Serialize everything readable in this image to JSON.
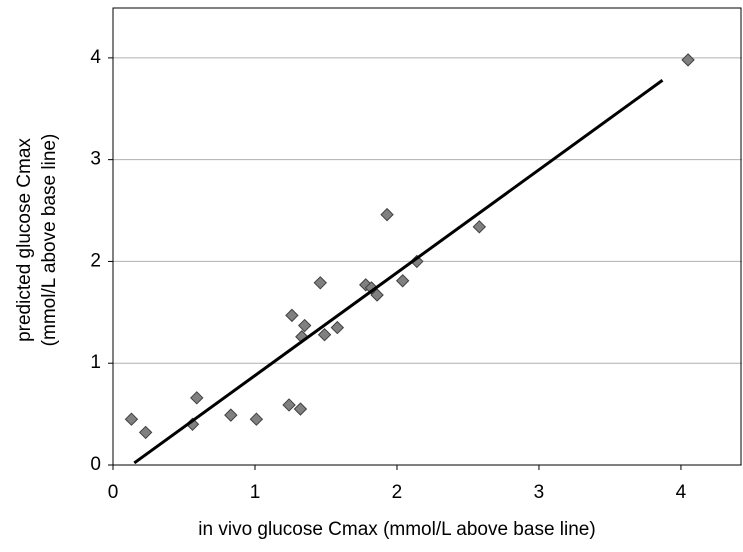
{
  "chart_data": {
    "type": "scatter",
    "xlabel": "in vivo glucose Cmax (mmol/L above base line)",
    "ylabel": [
      "predicted glucose Cmax",
      "(mmol/L above base line)"
    ],
    "xlim": [
      0,
      4.43
    ],
    "ylim": [
      0,
      4.49
    ],
    "xticks": [
      0,
      1,
      2,
      3,
      4
    ],
    "yticks": [
      0,
      1,
      2,
      3,
      4
    ],
    "grid": true,
    "series": [
      {
        "type": "scatter",
        "color": "#808080",
        "x": [
          0.13,
          0.23,
          0.56,
          0.59,
          0.83,
          1.01,
          1.24,
          1.32,
          1.26,
          1.35,
          1.33,
          1.46,
          1.49,
          1.58,
          1.78,
          1.82,
          1.86,
          1.93,
          2.04,
          2.14,
          2.58,
          4.05
        ],
        "values": [
          0.45,
          0.32,
          0.4,
          0.66,
          0.49,
          0.45,
          0.59,
          0.55,
          1.47,
          1.37,
          1.26,
          1.79,
          1.28,
          1.35,
          1.77,
          1.74,
          1.67,
          2.46,
          1.81,
          2.0,
          2.34,
          3.98
        ]
      },
      {
        "type": "line",
        "color": "#000000",
        "x": [
          0.15,
          3.87
        ],
        "values": [
          0.02,
          3.78
        ]
      }
    ]
  }
}
